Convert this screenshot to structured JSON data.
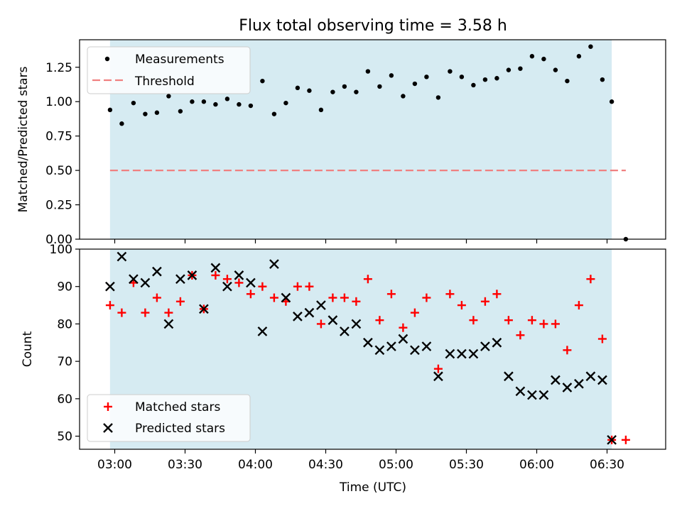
{
  "chart_data": [
    {
      "type": "scatter",
      "title": "Flux total observing time = 3.58 h",
      "ylabel": "Matched/Predicted stars",
      "ylim": [
        0,
        1.45
      ],
      "yticks": [
        0,
        0.25,
        0.5,
        0.75,
        1.0,
        1.25
      ],
      "ytick_labels": [
        "0.00",
        "0.25",
        "0.50",
        "0.75",
        "1.00",
        "1.25"
      ],
      "shaded_span": {
        "start": "02:58",
        "end": "06:32",
        "color": "#add8e6"
      },
      "legend": {
        "position": "upper-left",
        "entries": [
          "Measurements",
          "Threshold"
        ]
      },
      "series": [
        {
          "name": "Measurements",
          "marker": "dot",
          "color": "#000000",
          "x": [
            "02:58",
            "03:03",
            "03:08",
            "03:13",
            "03:18",
            "03:23",
            "03:28",
            "03:33",
            "03:38",
            "03:43",
            "03:48",
            "03:53",
            "03:58",
            "04:03",
            "04:08",
            "04:13",
            "04:18",
            "04:23",
            "04:28",
            "04:33",
            "04:38",
            "04:43",
            "04:48",
            "04:53",
            "04:58",
            "05:03",
            "05:08",
            "05:13",
            "05:18",
            "05:23",
            "05:28",
            "05:33",
            "05:38",
            "05:43",
            "05:48",
            "05:53",
            "05:58",
            "06:03",
            "06:08",
            "06:13",
            "06:18",
            "06:23",
            "06:28",
            "06:32",
            "06:38"
          ],
          "values": [
            0.94,
            0.84,
            0.99,
            0.91,
            0.92,
            1.04,
            0.93,
            1.0,
            1.0,
            0.98,
            1.02,
            0.98,
            0.97,
            1.15,
            0.91,
            0.99,
            1.1,
            1.08,
            0.94,
            1.07,
            1.11,
            1.07,
            1.22,
            1.11,
            1.19,
            1.04,
            1.13,
            1.18,
            1.03,
            1.22,
            1.18,
            1.12,
            1.16,
            1.17,
            1.23,
            1.24,
            1.33,
            1.31,
            1.23,
            1.15,
            1.33,
            1.4,
            1.16,
            1.0,
            0.0
          ]
        },
        {
          "name": "Threshold",
          "line": "dashed",
          "color": "#f08080",
          "x": [
            "02:58",
            "06:38"
          ],
          "values": [
            0.5,
            0.5
          ]
        }
      ]
    },
    {
      "type": "scatter",
      "xlabel": "Time (UTC)",
      "ylabel": "Count",
      "ylim": [
        46.5,
        100
      ],
      "yticks": [
        50,
        60,
        70,
        80,
        90,
        100
      ],
      "ytick_labels": [
        "50",
        "60",
        "70",
        "80",
        "90",
        "100"
      ],
      "x_axis": {
        "range": [
          "02:45",
          "06:55"
        ],
        "ticks": [
          "03:00",
          "03:30",
          "04:00",
          "04:30",
          "05:00",
          "05:30",
          "06:00",
          "06:30"
        ],
        "tick_labels": [
          "03:00",
          "03:30",
          "04:00",
          "04:30",
          "05:00",
          "05:30",
          "06:00",
          "06:30"
        ]
      },
      "shaded_span": {
        "start": "02:58",
        "end": "06:32",
        "color": "#add8e6"
      },
      "legend": {
        "position": "lower-left",
        "entries": [
          "Matched stars",
          "Predicted stars"
        ]
      },
      "series": [
        {
          "name": "Matched stars",
          "marker": "plus",
          "color": "#ff0000",
          "x": [
            "02:58",
            "03:03",
            "03:08",
            "03:13",
            "03:18",
            "03:23",
            "03:28",
            "03:33",
            "03:38",
            "03:43",
            "03:48",
            "03:53",
            "03:58",
            "04:03",
            "04:08",
            "04:13",
            "04:18",
            "04:23",
            "04:28",
            "04:33",
            "04:38",
            "04:43",
            "04:48",
            "04:53",
            "04:58",
            "05:03",
            "05:08",
            "05:13",
            "05:18",
            "05:23",
            "05:28",
            "05:33",
            "05:38",
            "05:43",
            "05:48",
            "05:53",
            "05:58",
            "06:03",
            "06:08",
            "06:13",
            "06:18",
            "06:23",
            "06:28",
            "06:32",
            "06:38"
          ],
          "values": [
            85,
            83,
            91,
            83,
            87,
            83,
            86,
            93,
            84,
            93,
            92,
            91,
            88,
            90,
            87,
            86,
            90,
            90,
            80,
            87,
            87,
            86,
            92,
            81,
            88,
            79,
            83,
            87,
            68,
            88,
            85,
            81,
            86,
            88,
            81,
            77,
            81,
            80,
            80,
            73,
            85,
            92,
            76,
            49,
            49
          ]
        },
        {
          "name": "Predicted stars",
          "marker": "x",
          "color": "#000000",
          "x": [
            "02:58",
            "03:03",
            "03:08",
            "03:13",
            "03:18",
            "03:23",
            "03:28",
            "03:33",
            "03:38",
            "03:43",
            "03:48",
            "03:53",
            "03:58",
            "04:03",
            "04:08",
            "04:13",
            "04:18",
            "04:23",
            "04:28",
            "04:33",
            "04:38",
            "04:43",
            "04:48",
            "04:53",
            "04:58",
            "05:03",
            "05:08",
            "05:13",
            "05:18",
            "05:23",
            "05:28",
            "05:33",
            "05:38",
            "05:43",
            "05:48",
            "05:53",
            "05:58",
            "06:03",
            "06:08",
            "06:13",
            "06:18",
            "06:23",
            "06:28",
            "06:32"
          ],
          "values": [
            90,
            98,
            92,
            91,
            94,
            80,
            92,
            93,
            84,
            95,
            90,
            93,
            91,
            78,
            96,
            87,
            82,
            83,
            85,
            81,
            78,
            80,
            75,
            73,
            74,
            76,
            73,
            74,
            66,
            72,
            72,
            72,
            74,
            75,
            66,
            62,
            61,
            61,
            65,
            63,
            64,
            66,
            65,
            49
          ]
        }
      ]
    }
  ]
}
